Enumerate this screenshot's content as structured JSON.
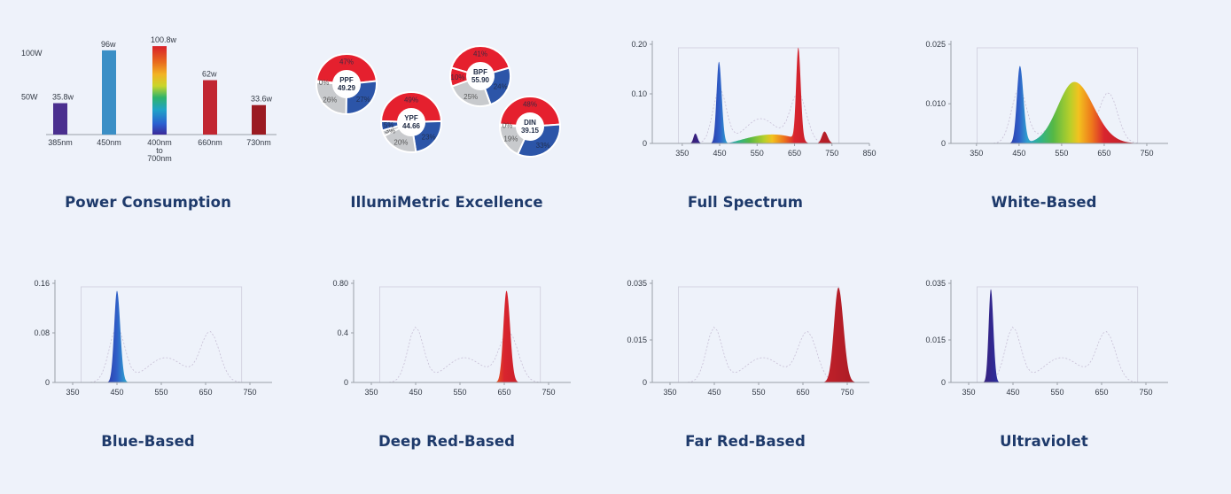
{
  "colors": {
    "title": "#1e3a6b",
    "background": "#eef2fa",
    "red": "#e5202e",
    "blue": "#2c55a8",
    "gray": "#c8cacd"
  },
  "power": {
    "title": "Power Consumption",
    "chart_data": {
      "type": "bar",
      "ylim": [
        0,
        110
      ],
      "yticks": [
        {
          "v": 100,
          "label": "100W"
        },
        {
          "v": 50,
          "label": "50W"
        }
      ],
      "categories": [
        {
          "label": [
            "385nm"
          ],
          "value": 35.8,
          "value_label": "35.8w",
          "color": "#4a2f8f"
        },
        {
          "label": [
            "450nm"
          ],
          "value": 96,
          "value_label": "96w",
          "color": "#3b8fc6"
        },
        {
          "label": [
            "400nm",
            "to",
            "700nm"
          ],
          "value": 100.8,
          "value_label": "100.8w",
          "color": "rainbow"
        },
        {
          "label": [
            "660nm"
          ],
          "value": 62,
          "value_label": "62w",
          "color": "#c12631"
        },
        {
          "label": [
            "730nm"
          ],
          "value": 33.6,
          "value_label": "33.6w",
          "color": "#9b1b22"
        }
      ]
    }
  },
  "illumi": {
    "title": "IllumiMetric Excellence",
    "chart_data": {
      "type": "pie",
      "donuts": [
        {
          "name": "PPF",
          "value": "49.29",
          "slices": [
            {
              "pct": 47,
              "label": "47%",
              "color": "#e5202e"
            },
            {
              "pct": 27,
              "label": "27%",
              "color": "#2c55a8"
            },
            {
              "pct": 26,
              "label": "26%",
              "color": "#c8cacd"
            },
            {
              "pct": 0,
              "label": "0%",
              "color": "#c8cacd"
            }
          ]
        },
        {
          "name": "BPF",
          "value": "55.90",
          "slices": [
            {
              "pct": 41,
              "label": "41%",
              "color": "#e5202e"
            },
            {
              "pct": 24,
              "label": "24%",
              "color": "#2c55a8"
            },
            {
              "pct": 25,
              "label": "25%",
              "color": "#c8cacd"
            },
            {
              "pct": 10,
              "label": "10%",
              "color": "#e5202e"
            }
          ]
        },
        {
          "name": "YPF",
          "value": "44.66",
          "slices": [
            {
              "pct": 49,
              "label": "49%",
              "color": "#e5202e"
            },
            {
              "pct": 23,
              "label": "23%",
              "color": "#2c55a8"
            },
            {
              "pct": 20,
              "label": "20%",
              "color": "#c8cacd"
            },
            {
              "pct": 3,
              "label": "3%",
              "color": "#c8cacd"
            },
            {
              "pct": 5,
              "label": "5%",
              "color": "#2c55a8"
            }
          ]
        },
        {
          "name": "DIN",
          "value": "39.15",
          "slices": [
            {
              "pct": 48,
              "label": "48%",
              "color": "#e5202e"
            },
            {
              "pct": 33,
              "label": "33%",
              "color": "#2c55a8"
            },
            {
              "pct": 19,
              "label": "19%",
              "color": "#c8cacd"
            },
            {
              "pct": 0,
              "label": "0%",
              "color": "#c8cacd"
            }
          ]
        }
      ]
    }
  },
  "spectra": [
    {
      "key": "full",
      "title": "Full Spectrum",
      "chart_data": {
        "type": "area",
        "xlim": [
          270,
          850
        ],
        "ylim": [
          0,
          0.2
        ],
        "xticks": [
          {
            "v": 350,
            "label": "350"
          },
          {
            "v": 450,
            "label": "450"
          },
          {
            "v": 550,
            "label": "550"
          },
          {
            "v": 650,
            "label": "650"
          },
          {
            "v": 750,
            "label": "750"
          },
          {
            "v": 850,
            "label": "850"
          }
        ],
        "yticks": [
          {
            "v": 0,
            "label": "0"
          },
          {
            "v": 0.1,
            "label": "0.10"
          },
          {
            "v": 0.2,
            "label": "0.20"
          }
        ],
        "peaks": [
          {
            "c": 385,
            "h": 0.02,
            "w": 7
          },
          {
            "c": 448,
            "h": 0.165,
            "w": 9
          },
          {
            "c": 660,
            "h": 0.185,
            "w": 8
          },
          {
            "c": 730,
            "h": 0.024,
            "w": 10
          }
        ],
        "baseline": {
          "from": 470,
          "to": 700,
          "h": 0.013,
          "rise": 0.01
        }
      }
    },
    {
      "key": "white",
      "title": "White-Based",
      "chart_data": {
        "type": "area",
        "xlim": [
          290,
          800
        ],
        "ylim": [
          0,
          0.025
        ],
        "xticks": [
          {
            "v": 350,
            "label": "350"
          },
          {
            "v": 450,
            "label": "450"
          },
          {
            "v": 550,
            "label": "550"
          },
          {
            "v": 650,
            "label": "650"
          },
          {
            "v": 750,
            "label": "750"
          }
        ],
        "yticks": [
          {
            "v": 0,
            "label": "0"
          },
          {
            "v": 0.01,
            "label": "0.010"
          },
          {
            "v": 0.025,
            "label": "0.025"
          }
        ],
        "peaks": [
          {
            "c": 452,
            "h": 0.0195,
            "w": 10
          },
          {
            "c": 580,
            "h": 0.0155,
            "w": 55
          }
        ],
        "baseline": null
      }
    },
    {
      "key": "blue",
      "title": "Blue-Based",
      "chart_data": {
        "type": "area",
        "xlim": [
          310,
          800
        ],
        "ylim": [
          0,
          0.16
        ],
        "xticks": [
          {
            "v": 350,
            "label": "350"
          },
          {
            "v": 450,
            "label": "450"
          },
          {
            "v": 550,
            "label": "550"
          },
          {
            "v": 650,
            "label": "650"
          },
          {
            "v": 750,
            "label": "750"
          }
        ],
        "yticks": [
          {
            "v": 0,
            "label": "0"
          },
          {
            "v": 0.08,
            "label": "0.08"
          },
          {
            "v": 0.16,
            "label": "0.16"
          }
        ],
        "peaks": [
          {
            "c": 450,
            "h": 0.148,
            "w": 9
          }
        ],
        "baseline": null
      }
    },
    {
      "key": "deepred",
      "title": "Deep Red-Based",
      "chart_data": {
        "type": "area",
        "xlim": [
          310,
          800
        ],
        "ylim": [
          0,
          0.8
        ],
        "xticks": [
          {
            "v": 350,
            "label": "350"
          },
          {
            "v": 450,
            "label": "450"
          },
          {
            "v": 550,
            "label": "550"
          },
          {
            "v": 650,
            "label": "650"
          },
          {
            "v": 750,
            "label": "750"
          }
        ],
        "yticks": [
          {
            "v": 0,
            "label": "0"
          },
          {
            "v": 0.4,
            "label": "0.4"
          },
          {
            "v": 0.8,
            "label": "0.80"
          }
        ],
        "peaks": [
          {
            "c": 655,
            "h": 0.74,
            "w": 10
          }
        ],
        "baseline": null
      }
    },
    {
      "key": "farred",
      "title": "Far Red-Based",
      "chart_data": {
        "type": "area",
        "xlim": [
          310,
          800
        ],
        "ylim": [
          0,
          0.035
        ],
        "xticks": [
          {
            "v": 350,
            "label": "350"
          },
          {
            "v": 450,
            "label": "450"
          },
          {
            "v": 550,
            "label": "550"
          },
          {
            "v": 650,
            "label": "650"
          },
          {
            "v": 750,
            "label": "750"
          }
        ],
        "yticks": [
          {
            "v": 0,
            "label": "0"
          },
          {
            "v": 0.015,
            "label": "0.015"
          },
          {
            "v": 0.035,
            "label": "0.035"
          }
        ],
        "peaks": [
          {
            "c": 730,
            "h": 0.0335,
            "w": 14
          }
        ],
        "baseline": null
      }
    },
    {
      "key": "uv",
      "title": "Ultraviolet",
      "chart_data": {
        "type": "area",
        "xlim": [
          310,
          800
        ],
        "ylim": [
          0,
          0.035
        ],
        "xticks": [
          {
            "v": 350,
            "label": "350"
          },
          {
            "v": 450,
            "label": "450"
          },
          {
            "v": 550,
            "label": "550"
          },
          {
            "v": 650,
            "label": "650"
          },
          {
            "v": 750,
            "label": "750"
          }
        ],
        "yticks": [
          {
            "v": 0,
            "label": "0"
          },
          {
            "v": 0.015,
            "label": "0.015"
          },
          {
            "v": 0.035,
            "label": "0.035"
          }
        ],
        "peaks": [
          {
            "c": 400,
            "h": 0.033,
            "w": 7
          }
        ],
        "baseline": null
      }
    }
  ]
}
